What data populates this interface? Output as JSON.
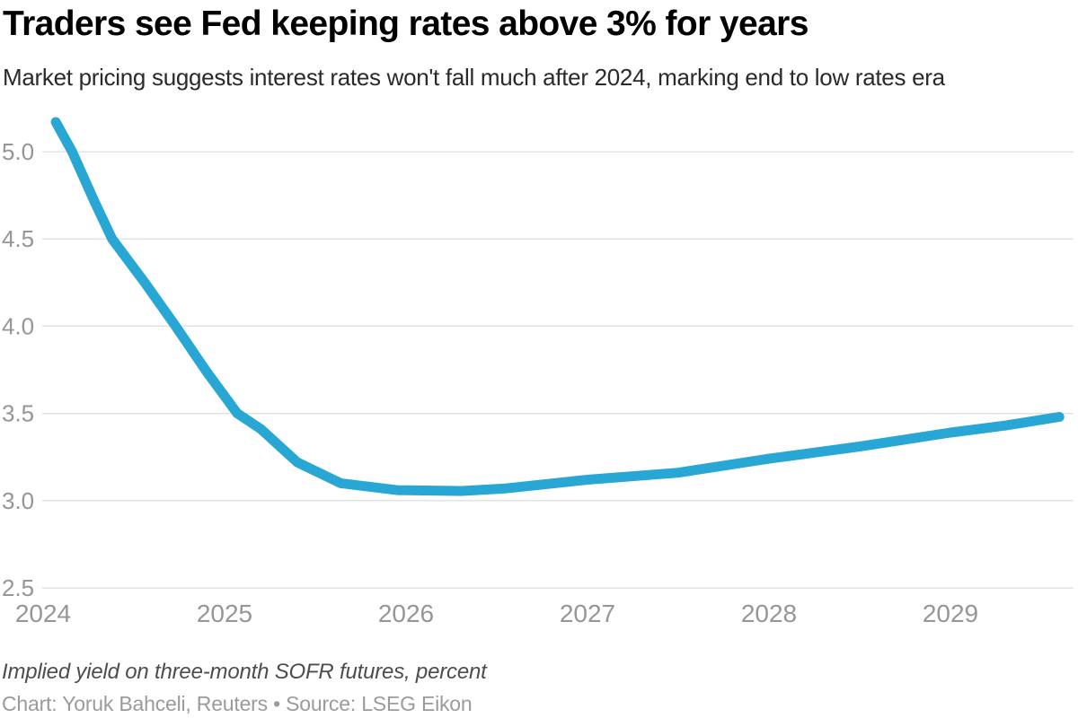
{
  "header": {
    "title": "Traders see Fed keeping rates above 3% for years",
    "subtitle": "Market pricing suggests interest rates won't fall much after 2024, marking end to low rates era"
  },
  "footer": {
    "note": "Implied yield on three-month SOFR futures, percent",
    "credit": "Chart: Yoruk Bahceli, Reuters • Source: LSEG Eikon"
  },
  "colors": {
    "line": "#28a6d4",
    "grid": "#e3e3e3",
    "tick_label": "#969696",
    "title": "#000000",
    "subtitle": "#2a2a2a",
    "note": "#4d4d4d",
    "credit": "#9b9b9b",
    "background": "#ffffff"
  },
  "chart_data": {
    "type": "line",
    "title": "Traders see Fed keeping rates above 3% for years",
    "subtitle": "Market pricing suggests interest rates won't fall much after 2024, marking end to low rates era",
    "xlabel": "",
    "ylabel": "Implied yield on three-month SOFR futures, percent",
    "grid": "horizontal-only",
    "legend": "none",
    "xlim": [
      2024.0,
      2029.7
    ],
    "ylim": [
      2.5,
      5.25
    ],
    "y_ticks": [
      {
        "label": "2.5",
        "value": 2.5
      },
      {
        "label": "3.0",
        "value": 3.0
      },
      {
        "label": "3.5",
        "value": 3.5
      },
      {
        "label": "4.0",
        "value": 4.0
      },
      {
        "label": "4.5",
        "value": 4.5
      },
      {
        "label": "5.0",
        "value": 5.0
      }
    ],
    "x_ticks": [
      {
        "label": "2024",
        "value": 2024
      },
      {
        "label": "2025",
        "value": 2025
      },
      {
        "label": "2026",
        "value": 2026
      },
      {
        "label": "2027",
        "value": 2027
      },
      {
        "label": "2028",
        "value": 2028
      },
      {
        "label": "2029",
        "value": 2029
      }
    ],
    "series": [
      {
        "name": "Implied yield on three-month SOFR futures (%)",
        "points": [
          [
            2024.07,
            5.17
          ],
          [
            2024.16,
            5.0
          ],
          [
            2024.28,
            4.72
          ],
          [
            2024.38,
            4.5
          ],
          [
            2024.56,
            4.25
          ],
          [
            2024.73,
            4.0
          ],
          [
            2024.9,
            3.74
          ],
          [
            2025.07,
            3.5
          ],
          [
            2025.2,
            3.41
          ],
          [
            2025.4,
            3.22
          ],
          [
            2025.64,
            3.1
          ],
          [
            2025.95,
            3.06
          ],
          [
            2026.3,
            3.055
          ],
          [
            2026.55,
            3.07
          ],
          [
            2027.0,
            3.12
          ],
          [
            2027.5,
            3.16
          ],
          [
            2028.0,
            3.24
          ],
          [
            2028.5,
            3.31
          ],
          [
            2029.0,
            3.39
          ],
          [
            2029.3,
            3.43
          ],
          [
            2029.6,
            3.48
          ]
        ]
      }
    ]
  }
}
